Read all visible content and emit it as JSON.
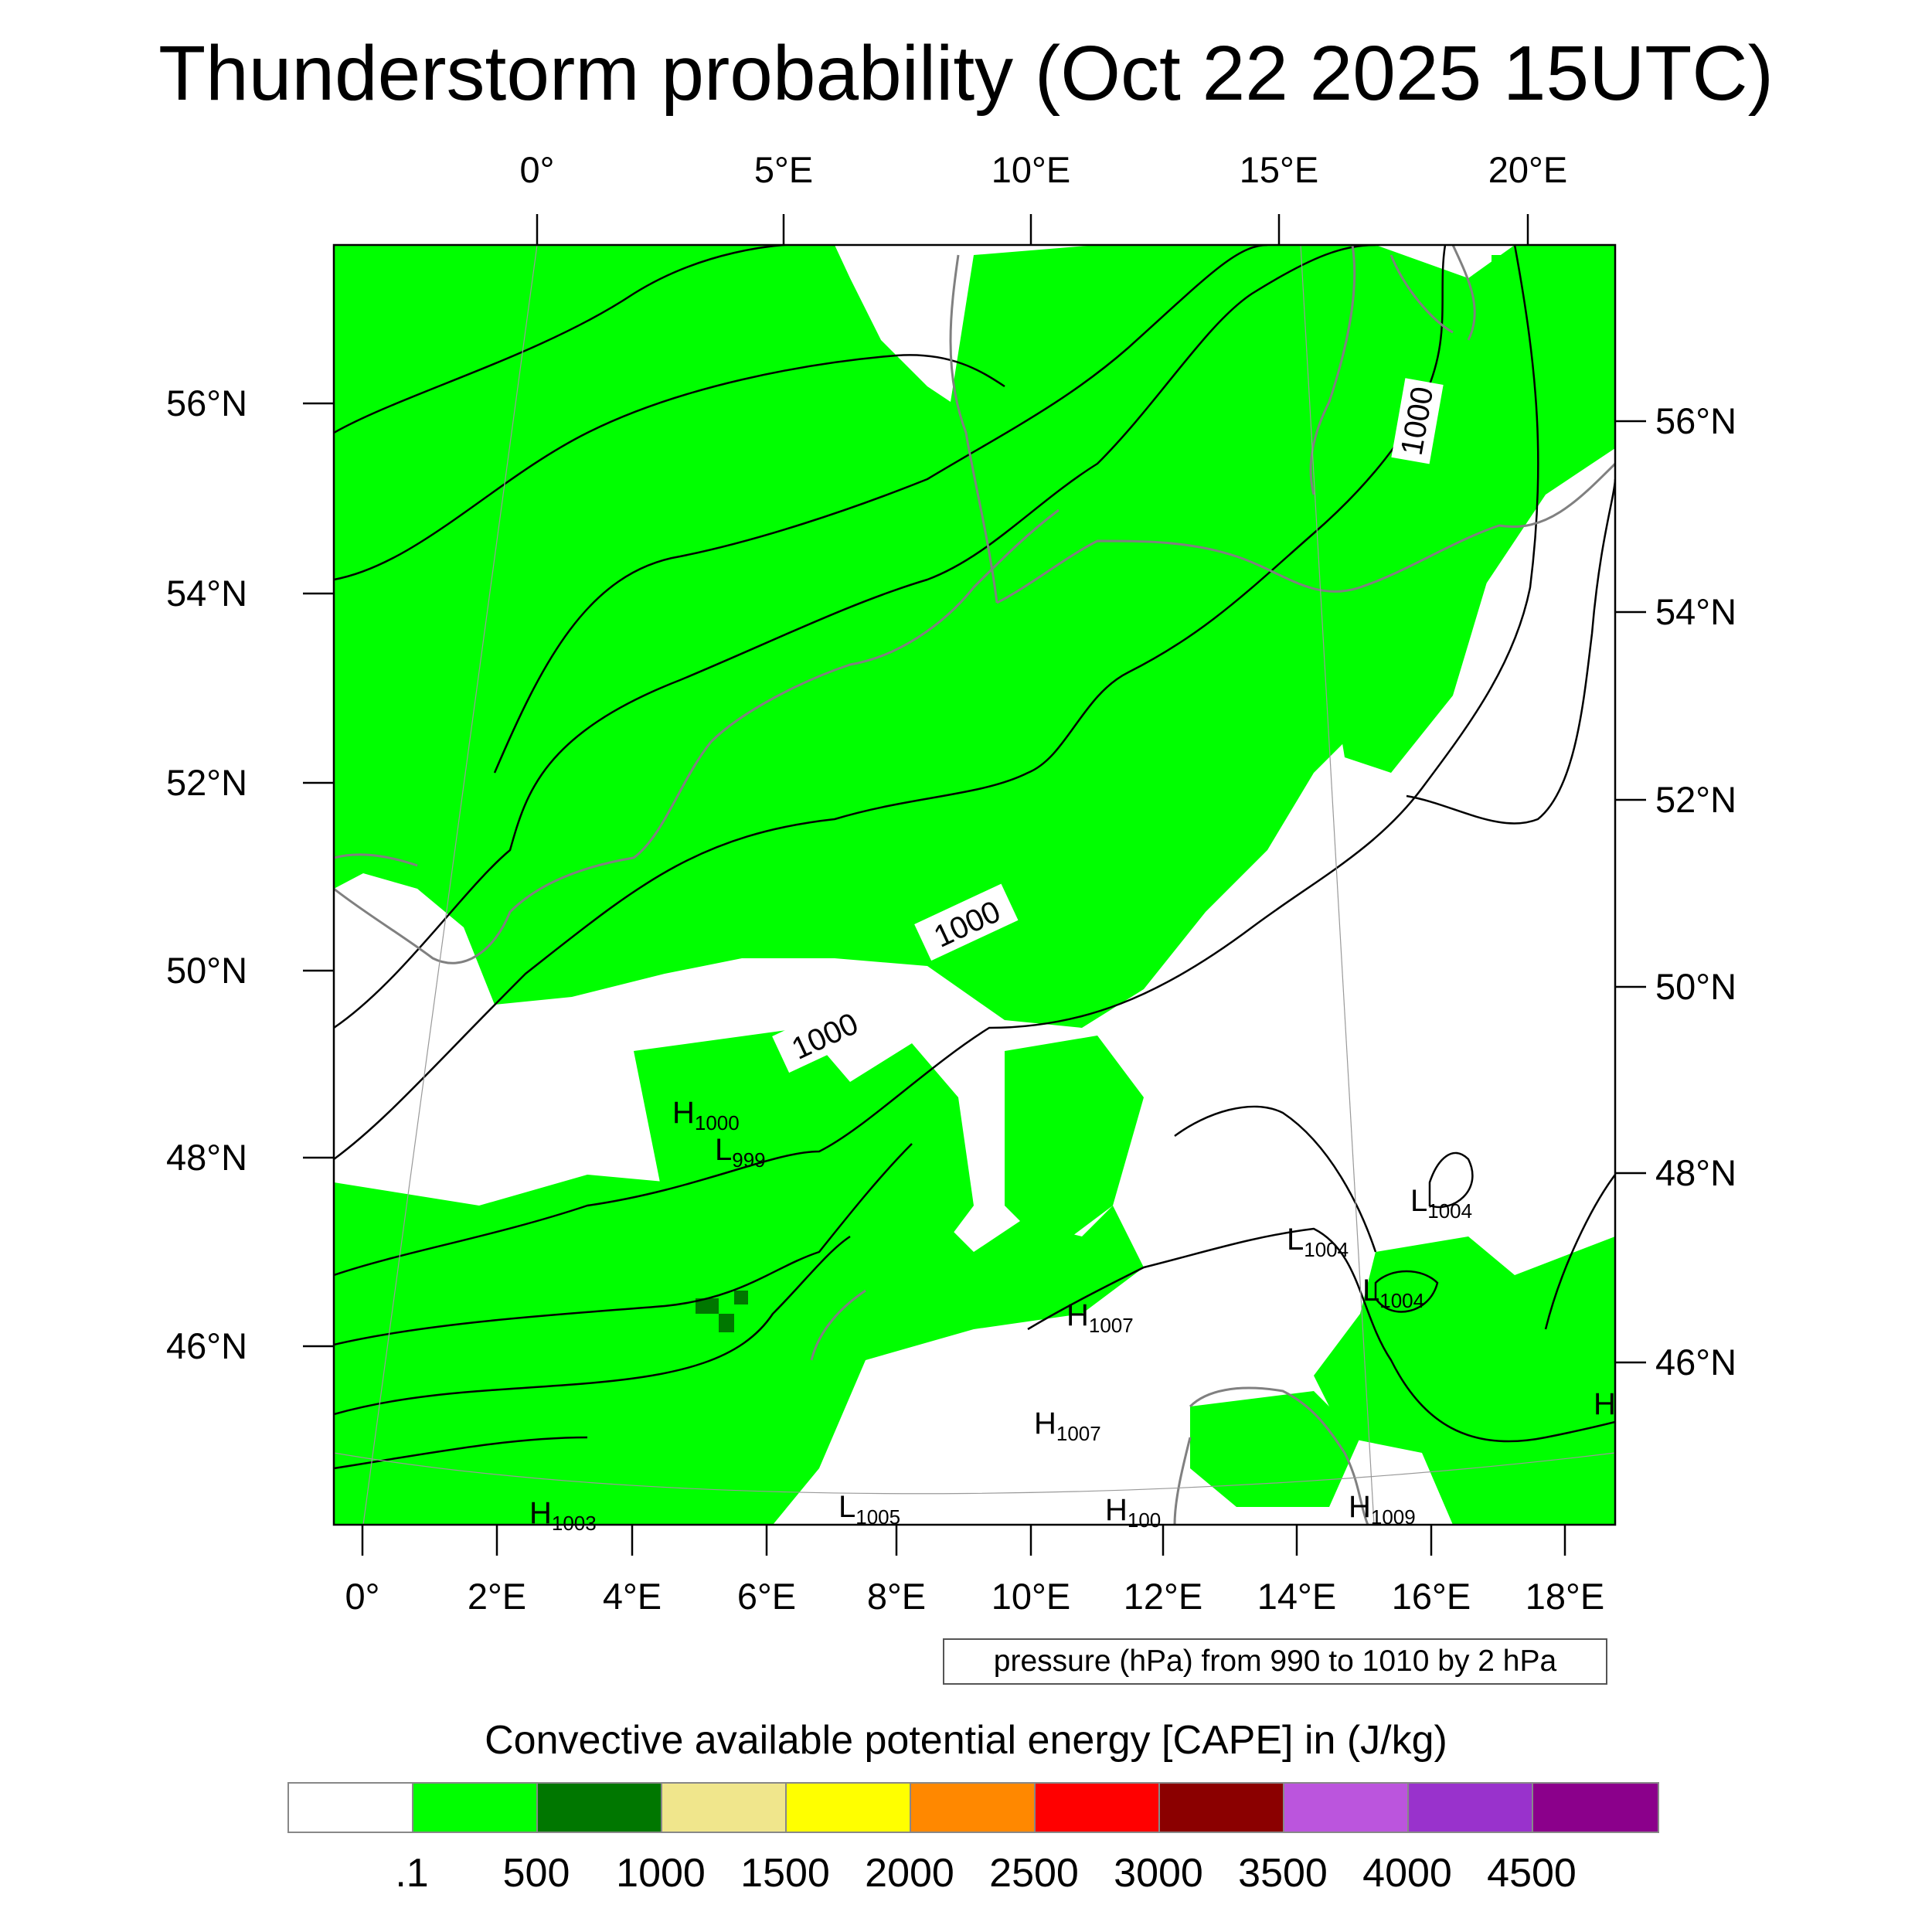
{
  "title": "Thunderstorm probability (Oct 22 2025 15UTC)",
  "top_lon_labels": [
    "0°",
    "5°E",
    "10°E",
    "15°E",
    "20°E"
  ],
  "bottom_lon_labels": [
    "0°",
    "2°E",
    "4°E",
    "6°E",
    "8°E",
    "10°E",
    "12°E",
    "14°E",
    "16°E",
    "18°E"
  ],
  "left_lat_labels": [
    "56°N",
    "54°N",
    "52°N",
    "50°N",
    "48°N",
    "46°N"
  ],
  "right_lat_labels": [
    "56°N",
    "54°N",
    "52°N",
    "50°N",
    "48°N",
    "46°N"
  ],
  "contour_labels": [
    "1000",
    "1000",
    "1000"
  ],
  "pressure_centers": [
    {
      "letter": "H",
      "value": "1000"
    },
    {
      "letter": "L",
      "value": "999"
    },
    {
      "letter": "L",
      "value": "1004"
    },
    {
      "letter": "L",
      "value": "1004"
    },
    {
      "letter": "L",
      "value": "1004"
    },
    {
      "letter": "H",
      "value": "1007"
    },
    {
      "letter": "H",
      "value": "1007"
    },
    {
      "letter": "H",
      "value": "1009"
    },
    {
      "letter": "L",
      "value": "1005"
    },
    {
      "letter": "H",
      "value": "1003"
    },
    {
      "letter": "H",
      "value": "100"
    },
    {
      "letter": "H",
      "value": ""
    }
  ],
  "contour_note": "pressure (hPa) from 990 to 1010 by 2 hPa",
  "colorbar": {
    "title": "Convective available potential energy [CAPE] in (J/kg)",
    "colors": [
      "#ffffff",
      "#00ff00",
      "#007700",
      "#f0e68c",
      "#ffff00",
      "#ff8800",
      "#ff0000",
      "#8b0000",
      "#bb55dd",
      "#9932cc",
      "#8b008b"
    ],
    "labels": [
      ".1",
      "500",
      "1000",
      "1500",
      "2000",
      "2500",
      "3000",
      "3500",
      "4000",
      "4500"
    ]
  },
  "map_colors": {
    "cape_green": "#00ff00",
    "cape_dark_green": "#007700",
    "isobar": "#000000",
    "coastline": "#808080"
  }
}
